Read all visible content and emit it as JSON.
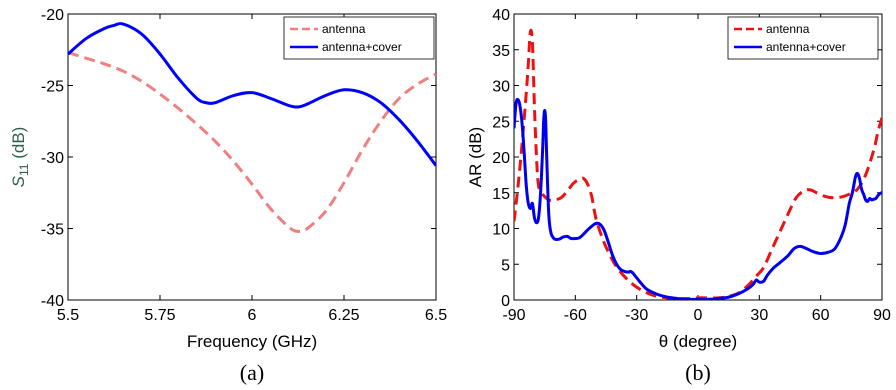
{
  "chart_data": [
    {
      "type": "line",
      "caption": "(a)",
      "xlabel": "Frequency (GHz)",
      "ylabel_main": "S",
      "ylabel_sub": "11",
      "ylabel_unit": " (dB)",
      "ylabel_color": "#2e5e4e",
      "xlim": [
        5.5,
        6.5
      ],
      "ylim": [
        -40,
        -20
      ],
      "xticks": [
        5.5,
        5.75,
        6,
        6.25,
        6.5
      ],
      "xtick_labels": [
        "5.5",
        "5.75",
        "6",
        "6.25",
        "6.5"
      ],
      "yticks": [
        -40,
        -35,
        -30,
        -25,
        -20
      ],
      "ytick_labels": [
        "-40",
        "-35",
        "-30",
        "-25",
        "-20"
      ],
      "grid": false,
      "legend": "top-right",
      "series": [
        {
          "name": "antenna",
          "color": "#f08080",
          "dash": "dashed",
          "x": [
            5.5,
            5.55,
            5.6,
            5.65,
            5.7,
            5.75,
            5.8,
            5.85,
            5.9,
            5.95,
            6.0,
            6.05,
            6.1,
            6.125,
            6.15,
            6.2,
            6.25,
            6.3,
            6.35,
            6.4,
            6.45,
            6.5
          ],
          "y": [
            -22.7,
            -23.1,
            -23.5,
            -24.0,
            -24.7,
            -25.6,
            -26.6,
            -27.7,
            -28.9,
            -30.3,
            -31.9,
            -33.6,
            -34.9,
            -35.2,
            -35.0,
            -33.8,
            -31.8,
            -29.5,
            -27.5,
            -25.9,
            -24.9,
            -24.2
          ]
        },
        {
          "name": "antenna+cover",
          "color": "#0000ff",
          "dash": "solid",
          "x": [
            5.5,
            5.55,
            5.6,
            5.625,
            5.65,
            5.7,
            5.75,
            5.8,
            5.85,
            5.875,
            5.9,
            5.95,
            6.0,
            6.05,
            6.1,
            6.125,
            6.15,
            6.2,
            6.25,
            6.3,
            6.35,
            6.4,
            6.45,
            6.5
          ],
          "y": [
            -22.8,
            -21.7,
            -21.0,
            -20.8,
            -20.7,
            -21.4,
            -22.8,
            -24.5,
            -25.9,
            -26.2,
            -26.2,
            -25.7,
            -25.5,
            -25.9,
            -26.4,
            -26.5,
            -26.3,
            -25.7,
            -25.3,
            -25.5,
            -26.2,
            -27.4,
            -28.9,
            -30.6
          ]
        }
      ]
    },
    {
      "type": "line",
      "caption": "(b)",
      "xlabel": "θ (degree)",
      "ylabel": "AR (dB)",
      "xlim": [
        -90,
        90
      ],
      "ylim": [
        0,
        40
      ],
      "xticks": [
        -90,
        -60,
        -30,
        0,
        30,
        60,
        90
      ],
      "xtick_labels": [
        "-90",
        "-60",
        "-30",
        "0",
        "30",
        "60",
        "90"
      ],
      "yticks": [
        0,
        5,
        10,
        15,
        20,
        25,
        30,
        35,
        40
      ],
      "ytick_labels": [
        "0",
        "5",
        "10",
        "15",
        "20",
        "25",
        "30",
        "35",
        "40"
      ],
      "grid": false,
      "legend": "top-right",
      "series": [
        {
          "name": "antenna",
          "color": "#ee1111",
          "dash": "dashed",
          "x": [
            -90,
            -88,
            -86,
            -84,
            -83,
            -82,
            -81,
            -80,
            -79,
            -78,
            -76,
            -74,
            -72,
            -70,
            -67,
            -64,
            -61,
            -58,
            -56,
            -54,
            -52,
            -50,
            -47,
            -44,
            -40,
            -35,
            -30,
            -25,
            -20,
            -15,
            -10,
            -5,
            0,
            5,
            10,
            15,
            20,
            25,
            28,
            32,
            36,
            40,
            44,
            48,
            52,
            55,
            58,
            62,
            66,
            70,
            74,
            78,
            82,
            86,
            88,
            90
          ],
          "y": [
            11,
            16,
            22,
            29,
            33,
            37.5,
            36,
            27,
            20,
            16,
            14.8,
            14.2,
            13.9,
            14.0,
            14.3,
            15.2,
            16.3,
            16.9,
            17.0,
            16.2,
            14.5,
            11.5,
            8.8,
            6.8,
            4.7,
            3.0,
            1.8,
            1.0,
            0.5,
            0.3,
            0.2,
            0.2,
            0.3,
            0.3,
            0.3,
            0.5,
            1.0,
            2.2,
            3.2,
            4.5,
            7.0,
            9.5,
            12.0,
            14.3,
            15.3,
            15.4,
            15.0,
            14.5,
            14.3,
            14.4,
            14.8,
            15.5,
            17.5,
            21.0,
            23.5,
            25.5
          ]
        },
        {
          "name": "antenna+cover",
          "color": "#0000ee",
          "dash": "solid",
          "x": [
            -90,
            -89,
            -88,
            -87,
            -86,
            -85,
            -84,
            -83,
            -82,
            -81,
            -80,
            -79,
            -78,
            -77,
            -76,
            -75.5,
            -75,
            -74.5,
            -74,
            -73,
            -72,
            -71,
            -70,
            -68,
            -66,
            -64,
            -62,
            -60,
            -58,
            -56,
            -54,
            -52,
            -50,
            -48,
            -46,
            -44,
            -42,
            -40,
            -38,
            -36,
            -34,
            -33,
            -32,
            -30,
            -28,
            -25,
            -20,
            -15,
            -10,
            -5,
            0,
            5,
            10,
            15,
            20,
            24,
            27,
            28.5,
            30,
            32,
            34,
            37,
            40,
            44,
            47,
            50,
            53,
            56,
            60,
            64,
            67,
            70,
            72,
            74,
            75.5,
            77,
            78,
            79,
            80,
            81,
            82,
            83,
            84,
            85,
            86,
            87,
            88,
            89,
            90
          ],
          "y": [
            24,
            27.5,
            28,
            27,
            24.5,
            20.5,
            16,
            13.5,
            12.8,
            13.5,
            11.5,
            10.8,
            11.5,
            15,
            21,
            25,
            26.5,
            25,
            20,
            12,
            9.5,
            8.8,
            8.5,
            8.5,
            8.8,
            8.9,
            8.6,
            8.6,
            8.7,
            9.2,
            9.8,
            10.3,
            10.7,
            10.6,
            9.8,
            8.2,
            6.4,
            5.1,
            4.3,
            4.0,
            3.9,
            4.0,
            3.8,
            3.1,
            2.4,
            1.5,
            0.8,
            0.4,
            0.2,
            0.1,
            0.1,
            0.1,
            0.2,
            0.4,
            0.9,
            1.5,
            2.2,
            2.8,
            2.5,
            2.6,
            3.5,
            4.5,
            5.2,
            6.2,
            7.2,
            7.5,
            7.2,
            6.8,
            6.5,
            6.7,
            7.2,
            8.8,
            10.5,
            13.5,
            15.0,
            17.2,
            17.7,
            17.0,
            15.5,
            14.8,
            14.0,
            13.8,
            14.2,
            14.0,
            14.1,
            14.2,
            14.6,
            14.9,
            15.0
          ]
        }
      ]
    }
  ]
}
